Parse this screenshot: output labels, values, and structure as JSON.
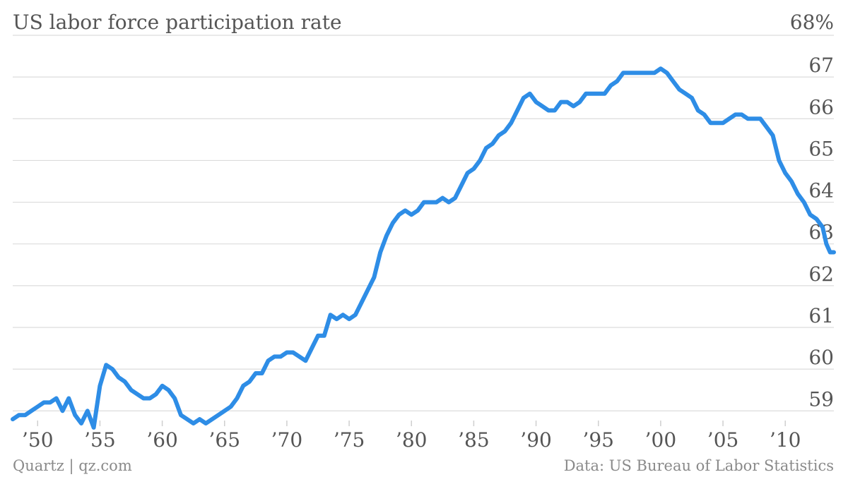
{
  "chart_data": {
    "type": "line",
    "title": "US labor force participation rate",
    "y_top_label": "68%",
    "source_left": "Quartz | qz.com",
    "source_right": "Data: US Bureau of Labor Statistics",
    "ylim": [
      58.7,
      68.0
    ],
    "xlim": [
      1948.0,
      2013.9
    ],
    "grid": true,
    "y_ticks": [
      {
        "value": 67,
        "label": "67"
      },
      {
        "value": 66,
        "label": "66"
      },
      {
        "value": 65,
        "label": "65"
      },
      {
        "value": 64,
        "label": "64"
      },
      {
        "value": 63,
        "label": "63"
      },
      {
        "value": 62,
        "label": "62"
      },
      {
        "value": 61,
        "label": "61"
      },
      {
        "value": 60,
        "label": "60"
      },
      {
        "value": 59,
        "label": "59"
      }
    ],
    "x_ticks": [
      {
        "value": 1950,
        "label": "’50"
      },
      {
        "value": 1955,
        "label": "’55"
      },
      {
        "value": 1960,
        "label": "’60"
      },
      {
        "value": 1965,
        "label": "’65"
      },
      {
        "value": 1970,
        "label": "’70"
      },
      {
        "value": 1975,
        "label": "’75"
      },
      {
        "value": 1980,
        "label": "’80"
      },
      {
        "value": 1985,
        "label": "’85"
      },
      {
        "value": 1990,
        "label": "’90"
      },
      {
        "value": 1995,
        "label": "’95"
      },
      {
        "value": 2000,
        "label": "’00"
      },
      {
        "value": 2005,
        "label": "’05"
      },
      {
        "value": 2010,
        "label": "’10"
      }
    ],
    "series": [
      {
        "color": "#2e8de6",
        "x": [
          1948.0,
          1948.5,
          1949.0,
          1949.5,
          1950.0,
          1950.5,
          1951.0,
          1951.5,
          1952.0,
          1952.5,
          1953.0,
          1953.5,
          1954.0,
          1954.5,
          1955.0,
          1955.5,
          1956.0,
          1956.5,
          1957.0,
          1957.5,
          1958.0,
          1958.5,
          1959.0,
          1959.5,
          1960.0,
          1960.5,
          1961.0,
          1961.5,
          1962.0,
          1962.5,
          1963.0,
          1963.5,
          1964.0,
          1964.5,
          1965.0,
          1965.5,
          1966.0,
          1966.5,
          1967.0,
          1967.5,
          1968.0,
          1968.5,
          1969.0,
          1969.5,
          1970.0,
          1970.5,
          1971.0,
          1971.5,
          1972.0,
          1972.5,
          1973.0,
          1973.5,
          1974.0,
          1974.5,
          1975.0,
          1975.5,
          1976.0,
          1976.5,
          1977.0,
          1977.5,
          1978.0,
          1978.5,
          1979.0,
          1979.5,
          1980.0,
          1980.5,
          1981.0,
          1981.5,
          1982.0,
          1982.5,
          1983.0,
          1983.5,
          1984.0,
          1984.5,
          1985.0,
          1985.5,
          1986.0,
          1986.5,
          1987.0,
          1987.5,
          1988.0,
          1988.5,
          1989.0,
          1989.5,
          1990.0,
          1990.5,
          1991.0,
          1991.5,
          1992.0,
          1992.5,
          1993.0,
          1993.5,
          1994.0,
          1994.5,
          1995.0,
          1995.5,
          1996.0,
          1996.5,
          1997.0,
          1997.5,
          1998.0,
          1998.5,
          1999.0,
          1999.5,
          2000.0,
          2000.5,
          2001.0,
          2001.5,
          2002.0,
          2002.5,
          2003.0,
          2003.5,
          2004.0,
          2004.5,
          2005.0,
          2005.5,
          2006.0,
          2006.5,
          2007.0,
          2007.5,
          2008.0,
          2008.5,
          2009.0,
          2009.5,
          2010.0,
          2010.5,
          2011.0,
          2011.5,
          2012.0,
          2012.5,
          2013.0,
          2013.3,
          2013.6,
          2013.9
        ],
        "values": [
          58.8,
          58.9,
          58.9,
          59.0,
          59.1,
          59.2,
          59.2,
          59.3,
          59.0,
          59.3,
          58.9,
          58.7,
          59.0,
          58.6,
          59.6,
          60.1,
          60.0,
          59.8,
          59.7,
          59.5,
          59.4,
          59.3,
          59.3,
          59.4,
          59.6,
          59.5,
          59.3,
          58.9,
          58.8,
          58.7,
          58.8,
          58.7,
          58.8,
          58.9,
          59.0,
          59.1,
          59.3,
          59.6,
          59.7,
          59.9,
          59.9,
          60.2,
          60.3,
          60.3,
          60.4,
          60.4,
          60.3,
          60.2,
          60.5,
          60.8,
          60.8,
          61.3,
          61.2,
          61.3,
          61.2,
          61.3,
          61.6,
          61.9,
          62.2,
          62.8,
          63.2,
          63.5,
          63.7,
          63.8,
          63.7,
          63.8,
          64.0,
          64.0,
          64.0,
          64.1,
          64.0,
          64.1,
          64.4,
          64.7,
          64.8,
          65.0,
          65.3,
          65.4,
          65.6,
          65.7,
          65.9,
          66.2,
          66.5,
          66.6,
          66.4,
          66.3,
          66.2,
          66.2,
          66.4,
          66.4,
          66.3,
          66.4,
          66.6,
          66.6,
          66.6,
          66.6,
          66.8,
          66.9,
          67.1,
          67.1,
          67.1,
          67.1,
          67.1,
          67.1,
          67.2,
          67.1,
          66.9,
          66.7,
          66.6,
          66.5,
          66.2,
          66.1,
          65.9,
          65.9,
          65.9,
          66.0,
          66.1,
          66.1,
          66.0,
          66.0,
          66.0,
          65.8,
          65.6,
          65.0,
          64.7,
          64.5,
          64.2,
          64.0,
          63.7,
          63.6,
          63.4,
          63.0,
          62.8,
          62.8
        ]
      }
    ]
  }
}
